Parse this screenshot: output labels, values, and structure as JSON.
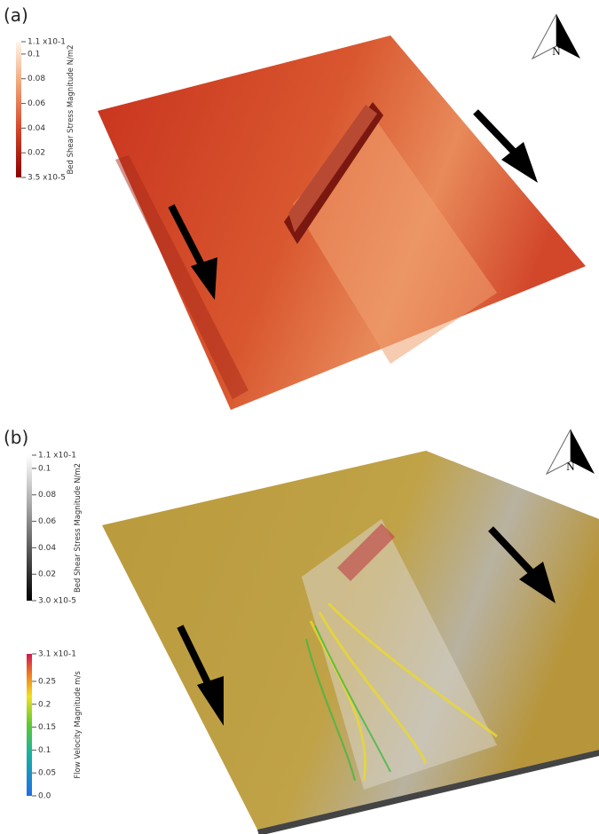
{
  "panels": [
    {
      "label": "(a)",
      "north": "N",
      "colorbars": [
        {
          "title": "Bed Shear Stress Magnitude N/m2",
          "range": [
            3.5e-05,
            0.11
          ],
          "ticks": [
            {
              "value": 3.5e-05,
              "label": "3.5 x10-5"
            },
            0.02,
            0.04,
            0.06,
            0.08,
            0.1,
            {
              "value": 0.11,
              "label": "1.1 x10-1"
            }
          ]
        }
      ]
    },
    {
      "label": "(b)",
      "north": "N",
      "colorbars": [
        {
          "title": "Bed Shear Stress Magnitude N/m2",
          "range": [
            3e-05,
            0.11
          ],
          "ticks": [
            {
              "value": 3e-05,
              "label": "3.0 x10-5"
            },
            0.02,
            0.04,
            0.06,
            0.08,
            0.1,
            {
              "value": 0.11,
              "label": "1.1 x10-1"
            }
          ]
        },
        {
          "title": "Flow Velocity Magnitude m/s",
          "range": [
            0,
            0.31
          ],
          "ticks": [
            {
              "value": 0,
              "label": "0.0"
            },
            0.05,
            0.1,
            0.15,
            0.2,
            0.25,
            {
              "value": 0.31,
              "label": "3.1 x10-1"
            }
          ]
        }
      ]
    }
  ]
}
